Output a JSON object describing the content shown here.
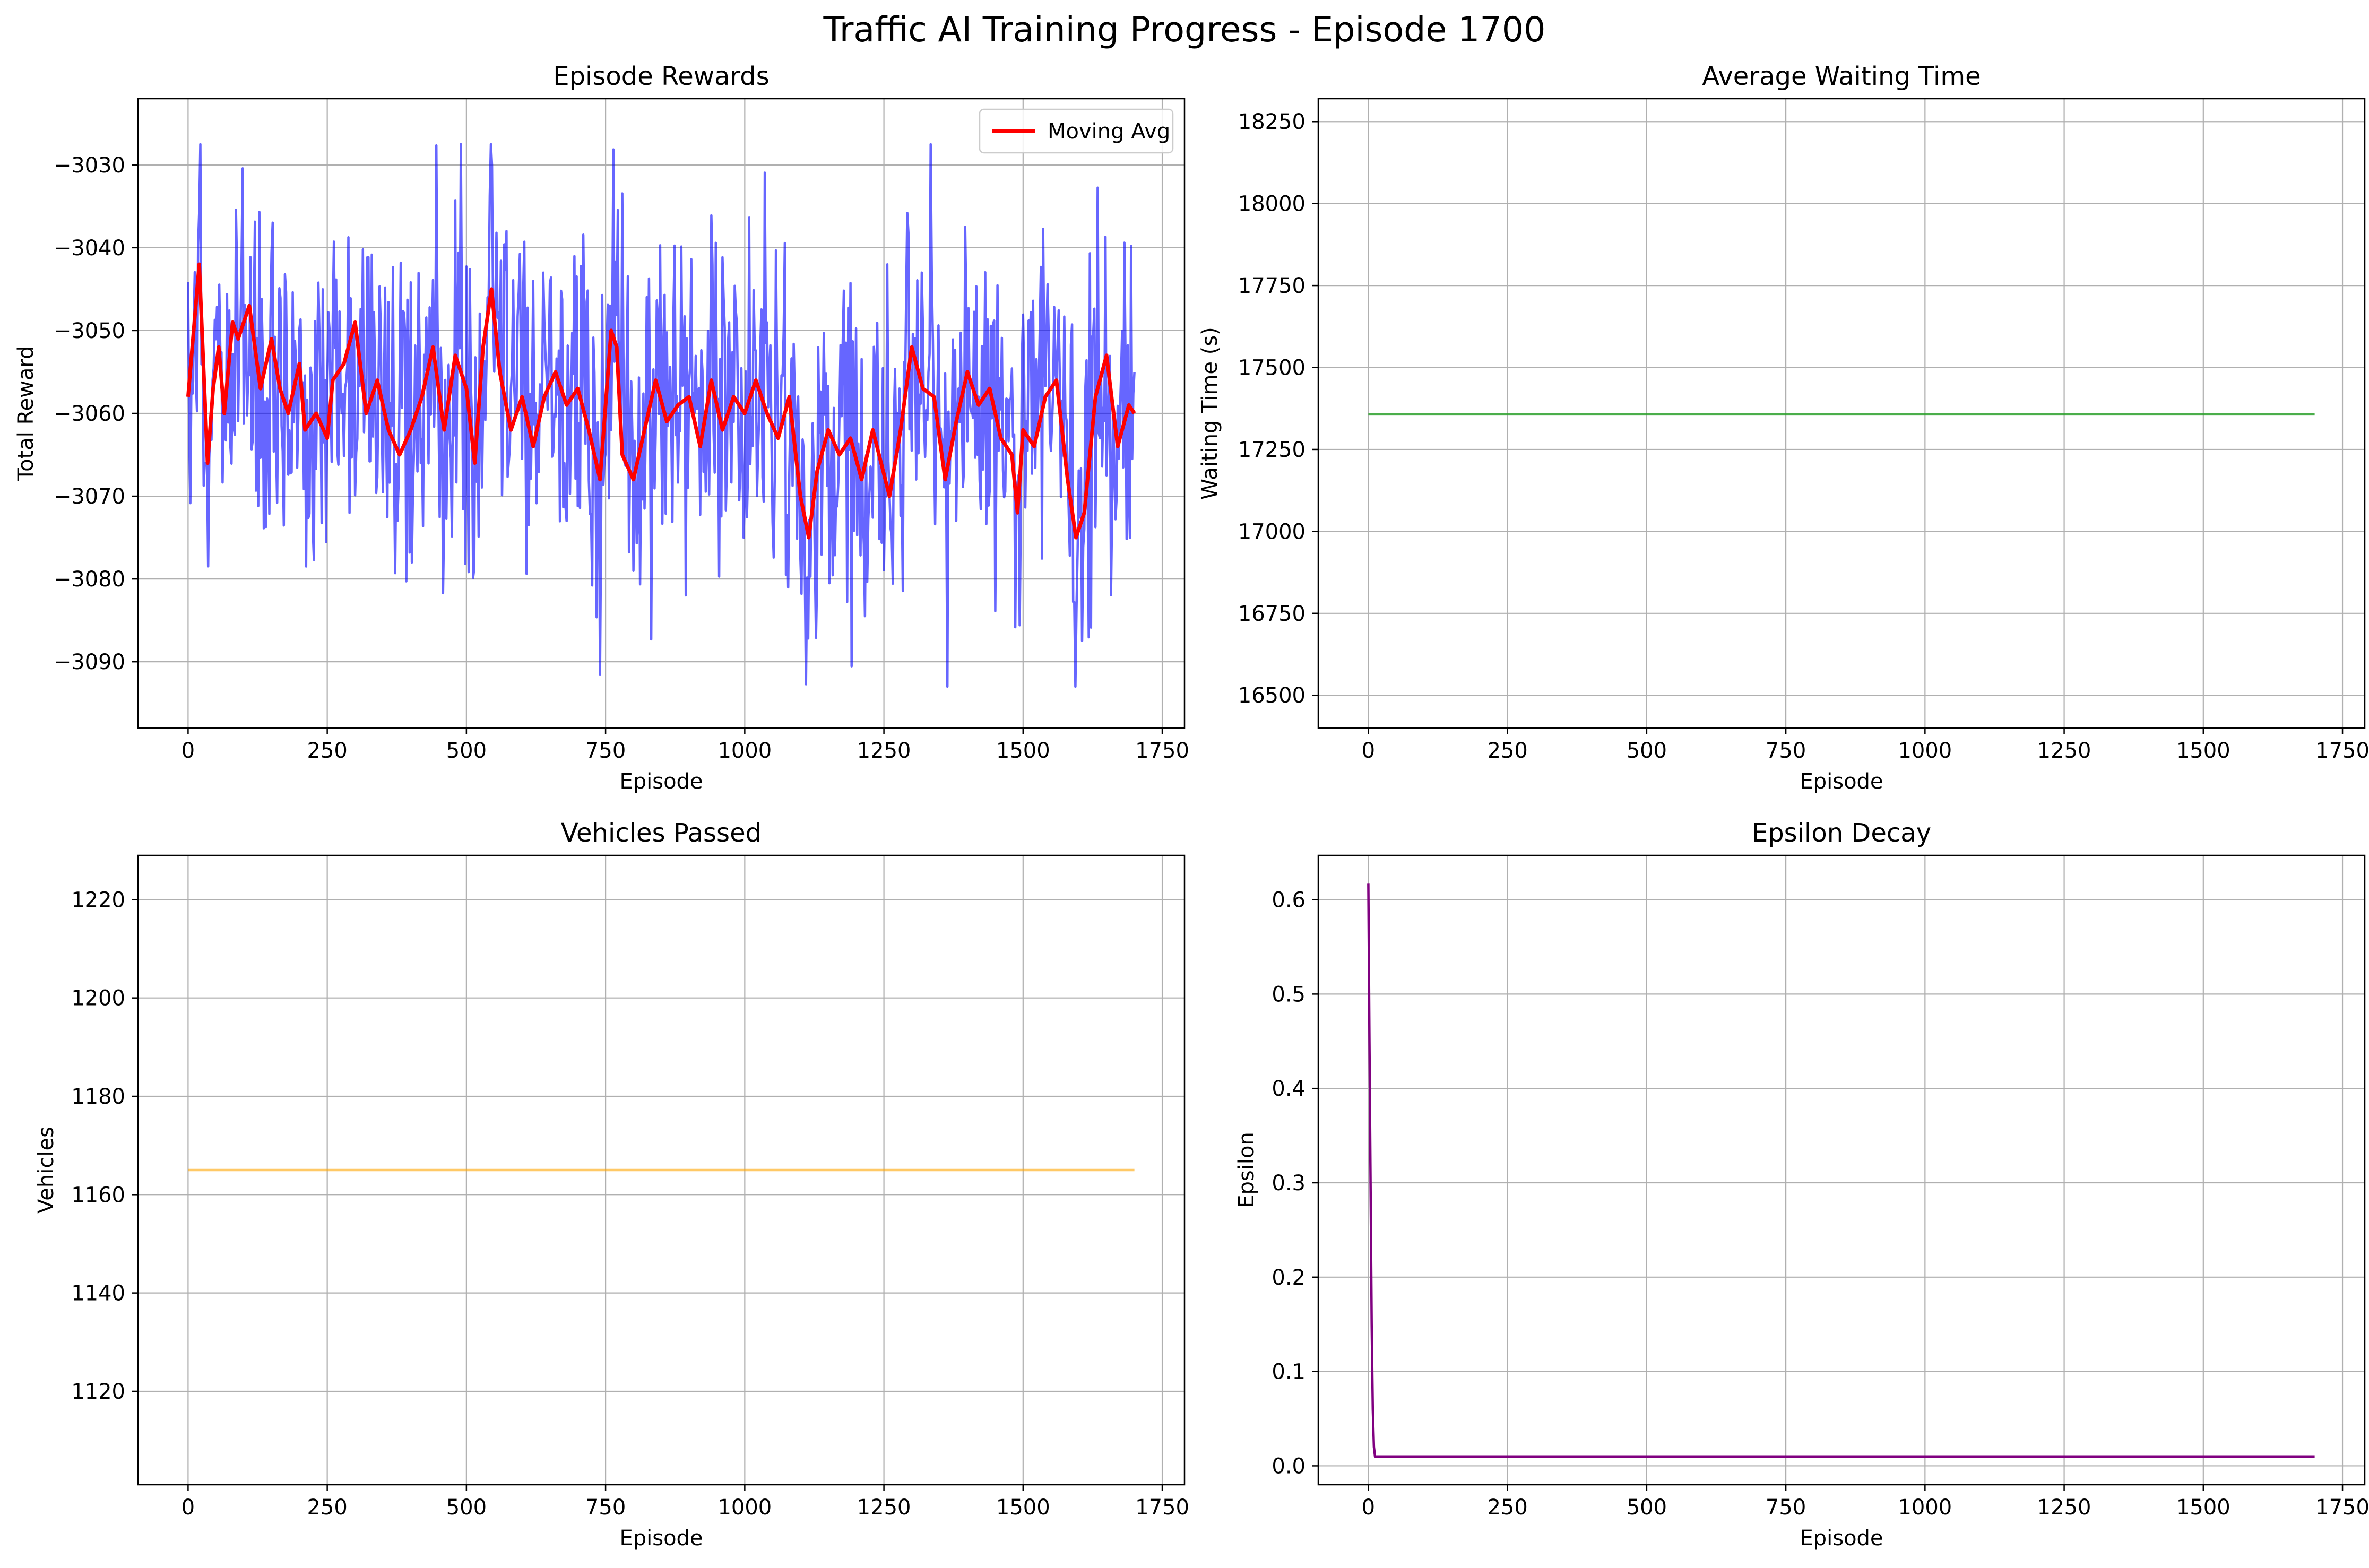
{
  "figure": {
    "title": "Traffic AI Training Progress - Episode 1700"
  },
  "chart_data": [
    {
      "id": "rewards",
      "type": "line",
      "title": "Episode Rewards",
      "xlabel": "Episode",
      "ylabel": "Total Reward",
      "xlim": [
        -90,
        1790
      ],
      "ylim": [
        -3098,
        -3022
      ],
      "xticks": [
        0,
        250,
        500,
        750,
        1000,
        1250,
        1500,
        1750
      ],
      "yticks": [
        -3090,
        -3080,
        -3070,
        -3060,
        -3050,
        -3040,
        -3030
      ],
      "grid": true,
      "legend": {
        "position": "top-right",
        "entries": [
          "Moving Avg"
        ]
      },
      "series": [
        {
          "key": "raw",
          "color": "#0000ff",
          "opacity": 0.6,
          "x_range": [
            0,
            1700
          ],
          "generated": "noisy per-episode rewards, roughly -3093 to -3027, mean about -3060"
        },
        {
          "key": "avg",
          "name": "Moving Avg",
          "color": "#ff0000",
          "x": [
            0,
            20,
            35,
            45,
            55,
            65,
            80,
            90,
            110,
            130,
            150,
            165,
            180,
            200,
            210,
            230,
            250,
            260,
            280,
            300,
            320,
            340,
            360,
            380,
            400,
            420,
            440,
            460,
            480,
            500,
            515,
            530,
            545,
            560,
            580,
            600,
            620,
            640,
            660,
            680,
            700,
            720,
            740,
            760,
            770,
            780,
            800,
            820,
            840,
            860,
            880,
            900,
            920,
            940,
            960,
            980,
            1000,
            1020,
            1040,
            1060,
            1080,
            1100,
            1115,
            1130,
            1150,
            1170,
            1190,
            1210,
            1230,
            1260,
            1280,
            1300,
            1320,
            1340,
            1360,
            1380,
            1400,
            1420,
            1440,
            1460,
            1480,
            1490,
            1500,
            1520,
            1540,
            1560,
            1580,
            1595,
            1610,
            1630,
            1650,
            1670,
            1690,
            1700
          ],
          "y": [
            -3058,
            -3042,
            -3066,
            -3057,
            -3052,
            -3060,
            -3049,
            -3051,
            -3047,
            -3057,
            -3051,
            -3057,
            -3060,
            -3054,
            -3062,
            -3060,
            -3063,
            -3056,
            -3054,
            -3049,
            -3060,
            -3056,
            -3062,
            -3065,
            -3062,
            -3058,
            -3052,
            -3062,
            -3053,
            -3057,
            -3066,
            -3052,
            -3045,
            -3055,
            -3062,
            -3058,
            -3064,
            -3058,
            -3055,
            -3059,
            -3057,
            -3062,
            -3068,
            -3050,
            -3052,
            -3065,
            -3068,
            -3062,
            -3056,
            -3061,
            -3059,
            -3058,
            -3064,
            -3056,
            -3062,
            -3058,
            -3060,
            -3056,
            -3060,
            -3063,
            -3058,
            -3070,
            -3075,
            -3067,
            -3062,
            -3065,
            -3063,
            -3068,
            -3062,
            -3070,
            -3062,
            -3052,
            -3057,
            -3058,
            -3068,
            -3061,
            -3055,
            -3059,
            -3057,
            -3063,
            -3065,
            -3072,
            -3062,
            -3064,
            -3058,
            -3056,
            -3068,
            -3075,
            -3072,
            -3058,
            -3053,
            -3064,
            -3059,
            -3060
          ]
        }
      ]
    },
    {
      "id": "waiting",
      "type": "line",
      "title": "Average Waiting Time",
      "xlabel": "Episode",
      "ylabel": "Waiting Time (s)",
      "xlim": [
        -90,
        1790
      ],
      "ylim": [
        16400,
        18320
      ],
      "xticks": [
        0,
        250,
        500,
        750,
        1000,
        1250,
        1500,
        1750
      ],
      "yticks": [
        16500,
        16750,
        17000,
        17250,
        17500,
        17750,
        18000,
        18250
      ],
      "grid": true,
      "series": [
        {
          "color": "#2ca02c",
          "opacity": 0.85,
          "x": [
            0,
            1700
          ],
          "y": [
            17357,
            17357
          ]
        }
      ]
    },
    {
      "id": "vehicles",
      "type": "line",
      "title": "Vehicles Passed",
      "xlabel": "Episode",
      "ylabel": "Vehicles",
      "xlim": [
        -90,
        1790
      ],
      "ylim": [
        1101,
        1229
      ],
      "xticks": [
        0,
        250,
        500,
        750,
        1000,
        1250,
        1500,
        1750
      ],
      "yticks": [
        1120,
        1140,
        1160,
        1180,
        1200,
        1220
      ],
      "grid": true,
      "series": [
        {
          "color": "#ffa500",
          "opacity": 0.6,
          "x": [
            0,
            1700
          ],
          "y": [
            1165,
            1165
          ]
        }
      ]
    },
    {
      "id": "epsilon",
      "type": "line",
      "title": "Epsilon Decay",
      "xlabel": "Episode",
      "ylabel": "Epsilon",
      "xlim": [
        -90,
        1790
      ],
      "ylim": [
        -0.02,
        0.647
      ],
      "xticks": [
        0,
        250,
        500,
        750,
        1000,
        1250,
        1500,
        1750
      ],
      "yticks": [
        0.0,
        0.1,
        0.2,
        0.3,
        0.4,
        0.5,
        0.6
      ],
      "tick_decimals": 1,
      "grid": true,
      "series": [
        {
          "color": "#800080",
          "opacity": 1,
          "x": [
            0,
            2,
            4,
            6,
            8,
            10,
            12,
            1700
          ],
          "y": [
            0.617,
            0.45,
            0.3,
            0.15,
            0.06,
            0.02,
            0.01,
            0.01
          ]
        }
      ]
    }
  ]
}
